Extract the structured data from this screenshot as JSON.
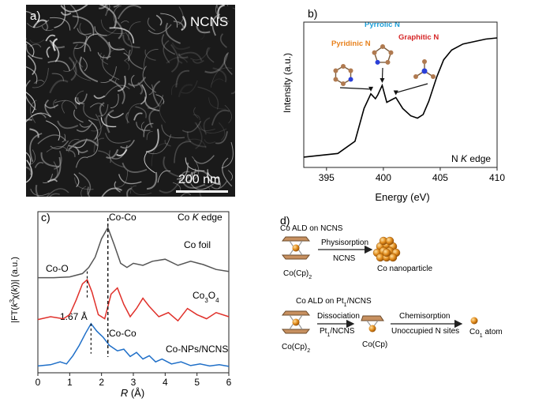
{
  "panel_a": {
    "label": "a)",
    "sample": "NCNS",
    "scalebar": "200 nm"
  },
  "panel_b": {
    "label": "b)",
    "edge_prefix": "N ",
    "edge_italic": "K",
    "edge_suffix": " edge",
    "structures": [
      {
        "name": "Pyridinic N",
        "color": "#e8821e"
      },
      {
        "name": "Pyrrolic N",
        "color": "#1e9fd8"
      },
      {
        "name": "Graphitic N",
        "color": "#d62728"
      }
    ]
  },
  "panel_c": {
    "label": "c)",
    "edge_prefix": "Co ",
    "edge_italic": "K",
    "edge_suffix": " edge",
    "annotations": {
      "coco_top": "Co-Co",
      "coo": "Co-O",
      "coco_bottom": "Co-Co",
      "distance": "1.67 Å"
    }
  },
  "panel_d": {
    "label": "d)",
    "row1": {
      "title": "Co ALD on NCNS",
      "process_top": "Physisorption",
      "process_bottom": "NCNS",
      "reactant": "Co(Cp)",
      "reactant_sub": "2",
      "product": "Co nanoparticle"
    },
    "row2": {
      "title": "Co ALD on Pt",
      "title_sub": "1",
      "title_suffix": "/NCNS",
      "step1_top": "Dissociation",
      "step1_bottom": "Pt",
      "step1_bottom_sub": "1",
      "step1_bottom_suffix": "/NCNS",
      "reactant": "Co(Cp)",
      "reactant_sub": "2",
      "intermediate": "Co(Cp)",
      "step2_top": "Chemisorption",
      "step2_bottom": "Unoccupied N sites",
      "product": "Co",
      "product_sub": "1",
      "product_suffix": " atom"
    }
  },
  "chart_data": [
    {
      "type": "line",
      "panel": "b",
      "xlabel": "Energy (eV)",
      "ylabel": "Intensity (a.u.)",
      "xlim": [
        393,
        410
      ],
      "xticks": [
        395,
        400,
        405,
        410
      ],
      "annotations": [
        "Pyridinic N",
        "Pyrrolic N",
        "Graphitic N",
        "N K edge"
      ],
      "series": [
        {
          "color": "#000000",
          "x": [
            393,
            396,
            397.5,
            398.3,
            398.9,
            399.3,
            399.5,
            399.9,
            400.3,
            400.7,
            401.1,
            401.7,
            402.4,
            403.0,
            403.5,
            404.0,
            404.7,
            405.3,
            406.0,
            407.0,
            408.0,
            409.0,
            410
          ],
          "y": [
            0.02,
            0.05,
            0.15,
            0.42,
            0.54,
            0.5,
            0.53,
            0.61,
            0.47,
            0.49,
            0.51,
            0.42,
            0.36,
            0.34,
            0.37,
            0.48,
            0.68,
            0.82,
            0.9,
            0.95,
            0.97,
            0.99,
            1.0
          ]
        }
      ]
    },
    {
      "type": "line",
      "panel": "c",
      "xlabel": "R (Å)",
      "ylabel": "|FT(k³χ(k))| (a.u.)",
      "xlim": [
        0,
        6
      ],
      "xticks": [
        0,
        1,
        2,
        3,
        4,
        5,
        6
      ],
      "series": [
        {
          "name": "Co foil",
          "color": "#555555",
          "x": [
            0,
            0.5,
            1.0,
            1.4,
            1.6,
            1.8,
            2.0,
            2.2,
            2.4,
            2.6,
            2.8,
            3.0,
            3.3,
            3.6,
            4.0,
            4.4,
            4.8,
            5.2,
            5.6,
            6.0
          ],
          "y": [
            2.2,
            2.2,
            2.22,
            2.3,
            2.45,
            2.7,
            3.15,
            3.42,
            3.0,
            2.55,
            2.45,
            2.55,
            2.5,
            2.6,
            2.65,
            2.5,
            2.6,
            2.52,
            2.4,
            2.35
          ]
        },
        {
          "name": "Co3O4",
          "color": "#e0302a",
          "x": [
            0,
            0.4,
            0.8,
            1.0,
            1.2,
            1.4,
            1.55,
            1.7,
            1.9,
            2.1,
            2.3,
            2.5,
            2.7,
            2.9,
            3.1,
            3.3,
            3.5,
            3.8,
            4.1,
            4.4,
            4.7,
            5.0,
            5.3,
            5.6,
            6.0
          ],
          "y": [
            1.18,
            1.25,
            1.2,
            1.3,
            1.65,
            2.05,
            2.15,
            1.85,
            1.3,
            1.2,
            1.8,
            1.95,
            1.55,
            1.25,
            1.45,
            1.7,
            1.5,
            1.25,
            1.35,
            1.15,
            1.45,
            1.3,
            1.2,
            1.35,
            1.25
          ]
        },
        {
          "name": "Co-NPs/NCNS",
          "color": "#1f6fc8",
          "x": [
            0,
            0.4,
            0.7,
            0.9,
            1.1,
            1.3,
            1.5,
            1.67,
            1.85,
            2.05,
            2.25,
            2.5,
            2.7,
            2.9,
            3.1,
            3.3,
            3.5,
            3.7,
            3.9,
            4.2,
            4.5,
            4.8,
            5.1,
            5.4,
            5.7,
            6.0
          ],
          "y": [
            0.05,
            0.08,
            0.15,
            0.1,
            0.3,
            0.55,
            0.85,
            1.08,
            0.9,
            0.75,
            0.55,
            0.42,
            0.46,
            0.28,
            0.38,
            0.22,
            0.3,
            0.15,
            0.22,
            0.1,
            0.15,
            0.06,
            0.1,
            0.05,
            0.08,
            0.04
          ]
        }
      ]
    }
  ]
}
